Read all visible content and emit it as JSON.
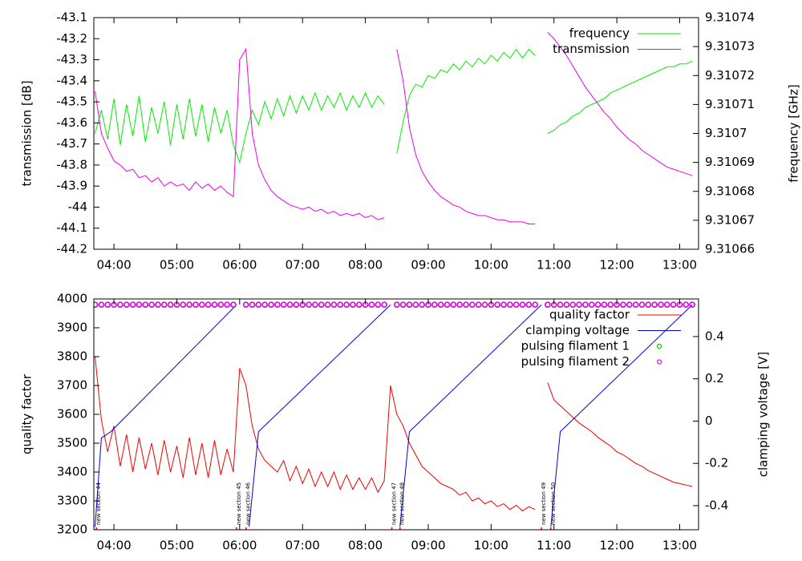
{
  "chart_data": [
    {
      "type": "line",
      "y_label": "transmission [dB]",
      "y2_label": "frequency [GHz]",
      "legend": "top right",
      "grid": false,
      "xlim": [
        3.68,
        13.3
      ],
      "xticks": [
        {
          "value": 4,
          "label": "04:00"
        },
        {
          "value": 5,
          "label": "05:00"
        },
        {
          "value": 6,
          "label": "06:00"
        },
        {
          "value": 7,
          "label": "07:00"
        },
        {
          "value": 8,
          "label": "08:00"
        },
        {
          "value": 9,
          "label": "09:00"
        },
        {
          "value": 10,
          "label": "10:00"
        },
        {
          "value": 11,
          "label": "11:00"
        },
        {
          "value": 12,
          "label": "12:00"
        },
        {
          "value": 13,
          "label": "13:00"
        }
      ],
      "ylim": [
        -44.2,
        -43.1
      ],
      "yticks": [
        -44.2,
        -44.1,
        -44,
        -43.9,
        -43.8,
        -43.7,
        -43.6,
        -43.5,
        -43.4,
        -43.3,
        -43.2,
        -43.1
      ],
      "y2lim": [
        9.31066,
        9.31074
      ],
      "y2ticks": [
        9.31066,
        9.31067,
        9.31068,
        9.31069,
        9.3107,
        9.31071,
        9.31072,
        9.31073,
        9.31074
      ],
      "x": [
        3.7,
        3.8,
        3.9,
        4.0,
        4.1,
        4.2,
        4.3,
        4.4,
        4.5,
        4.6,
        4.7,
        4.8,
        4.9,
        5.0,
        5.1,
        5.2,
        5.3,
        5.4,
        5.5,
        5.6,
        5.7,
        5.8,
        5.9,
        6.0,
        6.1,
        6.2,
        6.3,
        6.4,
        6.5,
        6.6,
        6.7,
        6.8,
        6.9,
        7.0,
        7.1,
        7.2,
        7.3,
        7.4,
        7.5,
        7.6,
        7.7,
        7.8,
        7.9,
        8.0,
        8.1,
        8.2,
        8.3,
        8.4,
        8.5,
        8.6,
        8.7,
        8.8,
        8.9,
        9.0,
        9.1,
        9.2,
        9.3,
        9.4,
        9.5,
        9.6,
        9.7,
        9.8,
        9.9,
        10.0,
        10.1,
        10.2,
        10.3,
        10.4,
        10.5,
        10.6,
        10.7,
        10.8,
        10.9,
        11.0,
        11.1,
        11.2,
        11.3,
        11.4,
        11.5,
        11.6,
        11.7,
        11.8,
        11.9,
        12.0,
        12.1,
        12.2,
        12.3,
        12.4,
        12.5,
        12.6,
        12.7,
        12.8,
        12.9,
        13.0,
        13.1,
        13.2
      ],
      "series": [
        {
          "name": "frequency",
          "color": "#00ee00",
          "axis": "y2",
          "style": "line",
          "values": [
            9.3107,
            9.310708,
            9.310698,
            9.310712,
            9.310696,
            9.31071,
            9.310699,
            9.310713,
            9.310697,
            9.310709,
            9.3107,
            9.310711,
            9.310696,
            9.31071,
            9.310698,
            9.310712,
            9.310699,
            9.31071,
            9.310697,
            9.310709,
            9.3107,
            9.310708,
            9.310696,
            9.31069,
            9.3107,
            9.310708,
            9.310703,
            9.310711,
            9.310705,
            9.310712,
            9.310706,
            9.310713,
            9.310707,
            9.310713,
            9.310708,
            9.310714,
            9.310708,
            9.310713,
            9.310709,
            9.310714,
            9.310708,
            9.310713,
            9.310709,
            9.310714,
            9.310709,
            9.310713,
            9.31071,
            null,
            9.310693,
            9.310704,
            9.310713,
            9.310717,
            9.310716,
            9.31072,
            9.310719,
            9.310722,
            9.310721,
            9.310724,
            9.310722,
            9.310725,
            9.310723,
            9.310726,
            9.310724,
            9.310727,
            9.310725,
            9.310728,
            9.310726,
            9.310729,
            9.310726,
            9.310729,
            9.310727,
            null,
            9.3107,
            9.310701,
            9.310703,
            9.310704,
            9.310706,
            9.310707,
            9.310709,
            9.31071,
            9.310711,
            9.310712,
            9.310714,
            9.310715,
            9.310716,
            9.310717,
            9.310718,
            9.310719,
            9.31072,
            9.310721,
            9.310722,
            9.310723,
            9.310723,
            9.310724,
            9.310724,
            9.310725
          ]
        },
        {
          "name": "transmission",
          "color": "#ee00ee",
          "axis": "y",
          "style": "line",
          "values": [
            -43.45,
            -43.65,
            -43.72,
            -43.78,
            -43.8,
            -43.83,
            -43.82,
            -43.86,
            -43.85,
            -43.88,
            -43.86,
            -43.9,
            -43.88,
            -43.9,
            -43.89,
            -43.92,
            -43.88,
            -43.91,
            -43.89,
            -43.92,
            -43.9,
            -43.93,
            -43.95,
            -43.3,
            -43.25,
            -43.65,
            -43.8,
            -43.87,
            -43.92,
            -43.95,
            -43.97,
            -43.99,
            -44.0,
            -44.01,
            -44.0,
            -44.02,
            -44.01,
            -44.03,
            -44.02,
            -44.04,
            -44.03,
            -44.04,
            -44.03,
            -44.05,
            -44.04,
            -44.06,
            -44.05,
            null,
            -43.25,
            -43.4,
            -43.62,
            -43.75,
            -43.83,
            -43.88,
            -43.92,
            -43.95,
            -43.97,
            -43.99,
            -44.0,
            -44.02,
            -44.03,
            -44.04,
            -44.04,
            -44.05,
            -44.06,
            -44.06,
            -44.07,
            -44.07,
            -44.07,
            -44.08,
            -44.08,
            null,
            -43.17,
            -43.2,
            -43.24,
            -43.28,
            -43.33,
            -43.38,
            -43.43,
            -43.47,
            -43.51,
            -43.55,
            -43.58,
            -43.62,
            -43.65,
            -43.68,
            -43.7,
            -43.73,
            -43.75,
            -43.77,
            -43.79,
            -43.81,
            -43.82,
            -43.83,
            -43.84,
            -43.85
          ]
        }
      ]
    },
    {
      "type": "line",
      "y_label": "quality factor",
      "y2_label": "clamping voltage [V]",
      "legend": "top right",
      "grid": false,
      "xlim": [
        3.68,
        13.3
      ],
      "xticks": [
        {
          "value": 4,
          "label": "04:00"
        },
        {
          "value": 5,
          "label": "05:00"
        },
        {
          "value": 6,
          "label": "06:00"
        },
        {
          "value": 7,
          "label": "07:00"
        },
        {
          "value": 8,
          "label": "08:00"
        },
        {
          "value": 9,
          "label": "09:00"
        },
        {
          "value": 10,
          "label": "10:00"
        },
        {
          "value": 11,
          "label": "11:00"
        },
        {
          "value": 12,
          "label": "12:00"
        },
        {
          "value": 13,
          "label": "13:00"
        }
      ],
      "ylim": [
        3200,
        4000
      ],
      "yticks": [
        3200,
        3300,
        3400,
        3500,
        3600,
        3700,
        3800,
        3900,
        4000
      ],
      "y2lim": [
        -0.514,
        0.578
      ],
      "y2ticks": [
        -0.4,
        -0.2,
        0,
        0.2,
        0.4
      ],
      "x": [
        3.7,
        3.8,
        3.9,
        4.0,
        4.1,
        4.2,
        4.3,
        4.4,
        4.5,
        4.6,
        4.7,
        4.8,
        4.9,
        5.0,
        5.1,
        5.2,
        5.3,
        5.4,
        5.5,
        5.6,
        5.7,
        5.8,
        5.9,
        6.0,
        6.1,
        6.2,
        6.3,
        6.4,
        6.5,
        6.6,
        6.7,
        6.8,
        6.9,
        7.0,
        7.1,
        7.2,
        7.3,
        7.4,
        7.5,
        7.6,
        7.7,
        7.8,
        7.9,
        8.0,
        8.1,
        8.2,
        8.3,
        8.4,
        8.5,
        8.6,
        8.7,
        8.8,
        8.9,
        9.0,
        9.1,
        9.2,
        9.3,
        9.4,
        9.5,
        9.6,
        9.7,
        9.8,
        9.9,
        10.0,
        10.1,
        10.2,
        10.3,
        10.4,
        10.5,
        10.6,
        10.7,
        10.8,
        10.9,
        11.0,
        11.1,
        11.2,
        11.3,
        11.4,
        11.5,
        11.6,
        11.7,
        11.8,
        11.9,
        12.0,
        12.1,
        12.2,
        12.3,
        12.4,
        12.5,
        12.6,
        12.7,
        12.8,
        12.9,
        13.0,
        13.1,
        13.2
      ],
      "series": [
        {
          "name": "quality factor",
          "color": "#ee0000",
          "axis": "y",
          "style": "line",
          "values": [
            3800,
            3580,
            3470,
            3560,
            3420,
            3530,
            3400,
            3520,
            3410,
            3500,
            3390,
            3510,
            3400,
            3490,
            3380,
            3520,
            3390,
            3500,
            3380,
            3510,
            3390,
            3480,
            3400,
            3760,
            3700,
            3560,
            3480,
            3440,
            3420,
            3400,
            3440,
            3370,
            3420,
            3360,
            3410,
            3350,
            3400,
            3350,
            3400,
            3340,
            3390,
            3340,
            3380,
            3340,
            3380,
            3330,
            3370,
            3700,
            3600,
            3560,
            3500,
            3460,
            3420,
            3400,
            3380,
            3360,
            3350,
            3340,
            3320,
            3330,
            3300,
            3310,
            3290,
            3300,
            3280,
            3290,
            3270,
            3285,
            3265,
            3280,
            3270,
            null,
            3710,
            3650,
            3630,
            3610,
            3590,
            3570,
            3555,
            3540,
            3520,
            3505,
            3490,
            3470,
            3460,
            3445,
            3430,
            3420,
            3405,
            3395,
            3385,
            3375,
            3365,
            3360,
            3355,
            3350
          ]
        },
        {
          "name": "clamping voltage",
          "color": "#0000dd",
          "axis": "y2",
          "style": "line",
          "x": [
            3.7,
            3.8,
            3.95,
            5.95,
            6.0,
            6.15,
            6.3,
            8.4,
            8.45,
            8.55,
            8.7,
            10.8,
            10.85,
            10.95,
            11.1,
            13.2
          ],
          "values": [
            -0.5,
            -0.08,
            -0.05,
            0.55,
            null,
            -0.5,
            -0.05,
            0.55,
            null,
            -0.5,
            -0.05,
            0.55,
            null,
            -0.5,
            -0.05,
            0.55
          ]
        },
        {
          "name": "pulsing filament 1",
          "color": "#00cc00",
          "axis": "y",
          "style": "points",
          "values": [
            3980,
            3980,
            3980,
            3980,
            3980,
            3980,
            3980,
            3980,
            3980,
            3980,
            3980,
            3980,
            3980,
            3980,
            3980,
            3980,
            3980,
            3980,
            3980,
            3980,
            3980,
            3980,
            3980,
            null,
            3980,
            3980,
            3980,
            3980,
            3980,
            3980,
            3980,
            3980,
            3980,
            3980,
            3980,
            3980,
            3980,
            3980,
            3980,
            3980,
            3980,
            3980,
            3980,
            3980,
            3980,
            3980,
            3980,
            null,
            3980,
            3980,
            3980,
            3980,
            3980,
            3980,
            3980,
            3980,
            3980,
            3980,
            3980,
            3980,
            3980,
            3980,
            3980,
            3980,
            3980,
            3980,
            3980,
            3980,
            3980,
            3980,
            3980,
            null,
            3980,
            3980,
            3980,
            3980,
            3980,
            3980,
            3980,
            3980,
            3980,
            3980,
            3980,
            3980,
            3980,
            3980,
            3980,
            3980,
            3980,
            3980,
            3980,
            3980,
            3980,
            3980,
            3980,
            3980
          ]
        },
        {
          "name": "pulsing filament 2",
          "color": "#ee00ee",
          "axis": "y",
          "style": "points",
          "values": [
            3980,
            3980,
            3980,
            3980,
            3980,
            3980,
            3980,
            3980,
            3980,
            3980,
            3980,
            3980,
            3980,
            3980,
            3980,
            3980,
            3980,
            3980,
            3980,
            3980,
            3980,
            3980,
            3980,
            null,
            3980,
            3980,
            3980,
            3980,
            3980,
            3980,
            3980,
            3980,
            3980,
            3980,
            3980,
            3980,
            3980,
            3980,
            3980,
            3980,
            3980,
            3980,
            3980,
            3980,
            3980,
            3980,
            3980,
            null,
            3980,
            3980,
            3980,
            3980,
            3980,
            3980,
            3980,
            3980,
            3980,
            3980,
            3980,
            3980,
            3980,
            3980,
            3980,
            3980,
            3980,
            3980,
            3980,
            3980,
            3980,
            3980,
            3980,
            null,
            3980,
            3980,
            3980,
            3980,
            3980,
            3980,
            3980,
            3980,
            3980,
            3980,
            3980,
            3980,
            3980,
            3980,
            3980,
            3980,
            3980,
            3980,
            3980,
            3980,
            3980,
            3980,
            3980,
            3980
          ]
        }
      ],
      "annotations": [
        {
          "x": 3.72,
          "text": "new section 44"
        },
        {
          "x": 5.95,
          "text": "new section 45"
        },
        {
          "x": 6.1,
          "text": "new section 46"
        },
        {
          "x": 8.42,
          "text": "new section 47"
        },
        {
          "x": 8.55,
          "text": "new section 48"
        },
        {
          "x": 10.8,
          "text": "new section 49"
        },
        {
          "x": 10.95,
          "text": "new section 50"
        }
      ]
    }
  ]
}
